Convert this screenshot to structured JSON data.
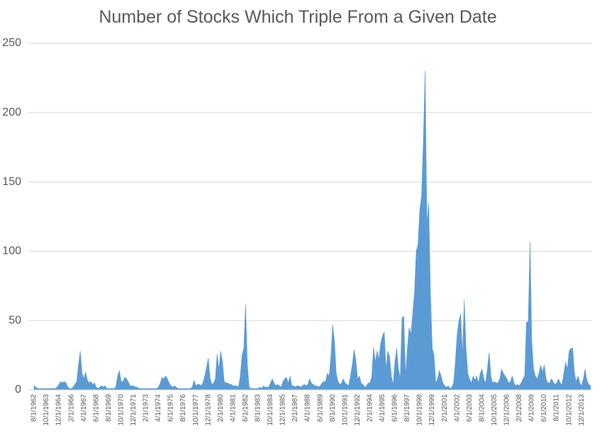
{
  "chart_data": {
    "type": "area",
    "title": "Number of Stocks Which Triple From a Given Date",
    "color": "#5b9bd5",
    "grid": true,
    "ylim": [
      0,
      250
    ],
    "yticks": [
      0,
      50,
      100,
      150,
      200,
      250
    ],
    "categories": [
      "8/1/1962",
      null,
      null,
      null,
      null,
      null,
      null,
      "10/1/1963",
      null,
      null,
      null,
      null,
      null,
      null,
      "12/1/1964",
      null,
      null,
      null,
      null,
      null,
      null,
      "2/1/1966",
      null,
      null,
      null,
      null,
      null,
      null,
      "4/1/1967",
      null,
      null,
      null,
      null,
      null,
      null,
      "6/1/1968",
      null,
      null,
      null,
      null,
      null,
      null,
      "8/1/1969",
      null,
      null,
      null,
      null,
      null,
      null,
      "10/1/1970",
      null,
      null,
      null,
      null,
      null,
      null,
      "12/1/1971",
      null,
      null,
      null,
      null,
      null,
      null,
      "2/1/1973",
      null,
      null,
      null,
      null,
      null,
      null,
      "4/1/1974",
      null,
      null,
      null,
      null,
      null,
      null,
      "6/1/1975",
      null,
      null,
      null,
      null,
      null,
      null,
      "8/1/1976",
      null,
      null,
      null,
      null,
      null,
      null,
      "10/1/1977",
      null,
      null,
      null,
      null,
      null,
      null,
      "12/1/1978",
      null,
      null,
      null,
      null,
      null,
      null,
      "2/1/1980",
      null,
      null,
      null,
      null,
      null,
      null,
      "4/1/1981",
      null,
      null,
      null,
      null,
      null,
      null,
      "6/1/1982",
      null,
      null,
      null,
      null,
      null,
      null,
      "8/1/1983",
      null,
      null,
      null,
      null,
      null,
      null,
      "10/1/1984",
      null,
      null,
      null,
      null,
      null,
      null,
      "12/1/1985",
      null,
      null,
      null,
      null,
      null,
      null,
      "2/1/1987",
      null,
      null,
      null,
      null,
      null,
      null,
      "4/1/1988",
      null,
      null,
      null,
      null,
      null,
      null,
      "6/1/1989",
      null,
      null,
      null,
      null,
      null,
      null,
      "8/1/1990",
      null,
      null,
      null,
      null,
      null,
      null,
      "10/1/1991",
      null,
      null,
      null,
      null,
      null,
      null,
      "12/1/1992",
      null,
      null,
      null,
      null,
      null,
      null,
      "2/1/1994",
      null,
      null,
      null,
      null,
      null,
      null,
      "4/1/1995",
      null,
      null,
      null,
      null,
      null,
      null,
      "6/1/1996",
      null,
      null,
      null,
      null,
      null,
      null,
      "8/1/1997",
      null,
      null,
      null,
      null,
      null,
      null,
      "10/1/1998",
      null,
      null,
      null,
      null,
      null,
      null,
      "12/1/1999",
      null,
      null,
      null,
      null,
      null,
      null,
      "2/1/2001",
      null,
      null,
      null,
      null,
      null,
      null,
      "4/1/2002",
      null,
      null,
      null,
      null,
      null,
      null,
      "6/1/2003",
      null,
      null,
      null,
      null,
      null,
      null,
      "8/1/2004",
      null,
      null,
      null,
      null,
      null,
      null,
      "10/1/2005",
      null,
      null,
      null,
      null,
      null,
      null,
      "12/1/2006",
      null,
      null,
      null,
      null,
      null,
      null,
      "2/1/2008",
      null,
      null,
      null,
      null,
      null,
      null,
      "4/1/2009",
      null,
      null,
      null,
      null,
      null,
      null,
      "6/1/2010",
      null,
      null,
      null,
      null,
      null,
      null,
      "8/1/2011",
      null,
      null,
      null,
      null,
      null,
      null,
      "10/1/2012",
      null,
      null,
      null,
      null,
      null,
      null,
      "12/1/2013",
      null,
      null,
      null,
      null,
      null
    ],
    "values": [
      3,
      2,
      1,
      1,
      1,
      1,
      1,
      1,
      1,
      1,
      1,
      1,
      1,
      2,
      4,
      6,
      5,
      6,
      5,
      2,
      1,
      1,
      2,
      4,
      6,
      18,
      28,
      12,
      8,
      13,
      7,
      5,
      6,
      4,
      5,
      2,
      1,
      2,
      3,
      2,
      3,
      1,
      1,
      1,
      1,
      1,
      2,
      10,
      14,
      6,
      6,
      9,
      8,
      6,
      3,
      3,
      3,
      2,
      2,
      1,
      1,
      1,
      1,
      1,
      1,
      1,
      1,
      1,
      1,
      1,
      2,
      5,
      9,
      8,
      10,
      8,
      5,
      3,
      2,
      3,
      2,
      1,
      1,
      1,
      1,
      1,
      1,
      1,
      1,
      2,
      7,
      3,
      4,
      4,
      3,
      5,
      10,
      16,
      23,
      9,
      4,
      5,
      8,
      26,
      15,
      28,
      20,
      6,
      5,
      5,
      4,
      4,
      3,
      3,
      3,
      2,
      10,
      25,
      30,
      62,
      18,
      2,
      1,
      1,
      1,
      1,
      1,
      2,
      1,
      3,
      2,
      2,
      2,
      5,
      8,
      5,
      3,
      4,
      3,
      2,
      6,
      8,
      9,
      5,
      10,
      3,
      3,
      2,
      3,
      3,
      2,
      3,
      4,
      3,
      4,
      8,
      5,
      4,
      3,
      3,
      2,
      3,
      5,
      6,
      6,
      12,
      10,
      24,
      47,
      35,
      12,
      6,
      4,
      5,
      8,
      5,
      4,
      3,
      10,
      18,
      29,
      22,
      8,
      10,
      5,
      4,
      2,
      3,
      5,
      5,
      10,
      31,
      20,
      28,
      22,
      34,
      39,
      42,
      15,
      28,
      24,
      10,
      4,
      20,
      30,
      15,
      8,
      52,
      53,
      10,
      30,
      45,
      40,
      55,
      70,
      100,
      105,
      130,
      140,
      180,
      230,
      120,
      135,
      70,
      30,
      25,
      5,
      8,
      14,
      10,
      5,
      3,
      2,
      3,
      1,
      2,
      5,
      20,
      40,
      50,
      55,
      25,
      65,
      30,
      12,
      8,
      5,
      10,
      7,
      10,
      5,
      12,
      15,
      8,
      5,
      15,
      27,
      10,
      5,
      6,
      5,
      5,
      8,
      15,
      12,
      10,
      8,
      5,
      6,
      10,
      5,
      3,
      4,
      3,
      5,
      8,
      10,
      49,
      49,
      107,
      35,
      15,
      10,
      8,
      12,
      18,
      13,
      18,
      8,
      5,
      5,
      8,
      6,
      4,
      5,
      8,
      5,
      4,
      12,
      20,
      15,
      28,
      30,
      30,
      12,
      6,
      10,
      5,
      3,
      8,
      15,
      7,
      4,
      3
    ]
  }
}
